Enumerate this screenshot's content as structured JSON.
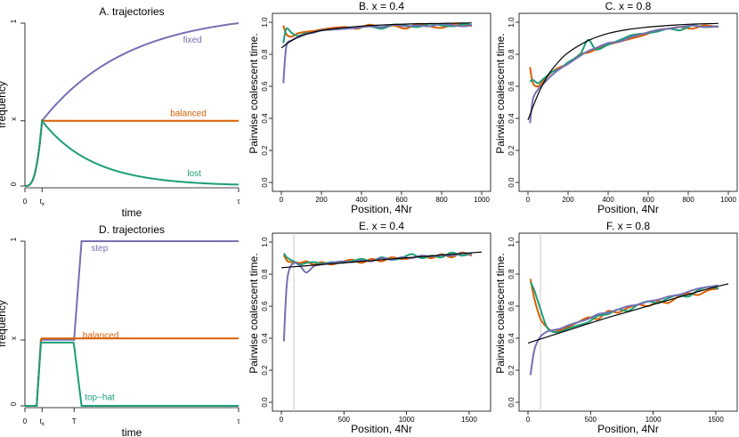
{
  "colors": {
    "purple": "#7570B3",
    "orange": "#D95F02",
    "green": "#1B9E77",
    "black": "#000000",
    "gray": "#C8C8C8"
  },
  "chart_data": [
    {
      "id": "A",
      "type": "line",
      "title": "A. trajectories",
      "xlabel": "time",
      "ylabel": "frequency",
      "xticks": [
        {
          "v": 0,
          "label": "0"
        },
        {
          "v": 0.08,
          "label": "t",
          "sub": "x"
        },
        {
          "v": 1,
          "label": "τ"
        }
      ],
      "yticks": [
        {
          "v": 0,
          "label": "0"
        },
        {
          "v": 0.4,
          "label": "x"
        },
        {
          "v": 1,
          "label": "1"
        }
      ],
      "xlim": [
        0,
        1
      ],
      "ylim": [
        0,
        1
      ],
      "series": [
        {
          "name": "fixed",
          "label": "fixed",
          "color": "purple",
          "label_at": [
            0.74,
            0.88
          ],
          "shape": "fixed"
        },
        {
          "name": "balanced",
          "label": "balanced",
          "color": "orange",
          "label_at": [
            0.68,
            0.43
          ],
          "shape": "balanced"
        },
        {
          "name": "lost",
          "label": "lost",
          "color": "green",
          "label_at": [
            0.76,
            0.06
          ],
          "shape": "lost"
        }
      ]
    },
    {
      "id": "B",
      "type": "line",
      "title": "B.  x =  0.4",
      "xlabel": "Position, 4Nr",
      "ylabel": "Pairwise coalescent time.",
      "xlim": [
        0,
        1000
      ],
      "ylim": [
        0,
        1
      ],
      "xticks": [
        0,
        200,
        400,
        600,
        800,
        1000
      ],
      "yticks": [
        0,
        0.2,
        0.4,
        0.6,
        0.8,
        1.0
      ],
      "ytick_labels": [
        "0.0",
        "0.2",
        "0.4",
        "0.6",
        "0.8",
        "1.0"
      ],
      "series": [
        {
          "name": "theory",
          "color": "black",
          "x": [
            0,
            50,
            100,
            150,
            200,
            300,
            400,
            500,
            600,
            700,
            800,
            900,
            950
          ],
          "y": [
            0.84,
            0.885,
            0.915,
            0.935,
            0.948,
            0.965,
            0.976,
            0.983,
            0.988,
            0.991,
            0.993,
            0.995,
            0.996
          ]
        },
        {
          "name": "sim-orange",
          "color": "orange",
          "x": [
            10,
            25,
            50,
            80,
            120,
            160,
            200,
            260,
            320,
            380,
            440,
            500,
            560,
            620,
            680,
            740,
            800,
            860,
            920,
            950
          ],
          "y": [
            0.98,
            0.925,
            0.91,
            0.93,
            0.94,
            0.945,
            0.955,
            0.965,
            0.97,
            0.96,
            0.985,
            0.965,
            0.98,
            0.96,
            0.99,
            0.975,
            0.965,
            0.99,
            0.985,
            0.975
          ]
        },
        {
          "name": "sim-green",
          "color": "green",
          "x": [
            10,
            25,
            50,
            80,
            120,
            160,
            200,
            260,
            320,
            380,
            440,
            500,
            560,
            620,
            680,
            740,
            800,
            860,
            920,
            950
          ],
          "y": [
            0.87,
            0.96,
            0.935,
            0.915,
            0.93,
            0.935,
            0.95,
            0.955,
            0.96,
            0.97,
            0.975,
            0.96,
            0.985,
            0.98,
            0.97,
            0.99,
            0.98,
            0.975,
            0.99,
            0.98
          ]
        },
        {
          "name": "sim-purple",
          "color": "purple",
          "x": [
            10,
            25,
            50,
            80,
            120,
            160,
            200,
            260,
            320,
            380,
            440,
            500,
            560,
            620,
            680,
            740,
            800,
            860,
            920,
            950
          ],
          "y": [
            0.62,
            0.85,
            0.885,
            0.905,
            0.925,
            0.935,
            0.95,
            0.955,
            0.96,
            0.965,
            0.975,
            0.97,
            0.985,
            0.975,
            0.98,
            0.975,
            0.99,
            0.98,
            0.975,
            0.985
          ]
        }
      ]
    },
    {
      "id": "C",
      "type": "line",
      "title": "C.  x =  0.8",
      "xlabel": "Position, 4Nr",
      "ylabel": "Pairwise coalescent time.",
      "xlim": [
        0,
        1000
      ],
      "ylim": [
        0,
        1
      ],
      "xticks": [
        0,
        200,
        400,
        600,
        800,
        1000
      ],
      "yticks": [
        0,
        0.2,
        0.4,
        0.6,
        0.8,
        1.0
      ],
      "ytick_labels": [
        "0.0",
        "0.2",
        "0.4",
        "0.6",
        "0.8",
        "1.0"
      ],
      "series": [
        {
          "name": "theory",
          "color": "black",
          "x": [
            0,
            50,
            100,
            150,
            200,
            300,
            400,
            500,
            600,
            700,
            800,
            900,
            950
          ],
          "y": [
            0.39,
            0.55,
            0.67,
            0.75,
            0.81,
            0.885,
            0.93,
            0.955,
            0.97,
            0.98,
            0.987,
            0.991,
            0.993
          ]
        },
        {
          "name": "sim-orange",
          "color": "orange",
          "x": [
            10,
            25,
            50,
            80,
            120,
            160,
            200,
            260,
            300,
            340,
            400,
            460,
            520,
            580,
            640,
            700,
            760,
            820,
            880,
            950
          ],
          "y": [
            0.72,
            0.62,
            0.6,
            0.64,
            0.69,
            0.72,
            0.74,
            0.8,
            0.81,
            0.83,
            0.86,
            0.88,
            0.9,
            0.92,
            0.95,
            0.96,
            0.97,
            0.96,
            0.98,
            0.97
          ]
        },
        {
          "name": "sim-green",
          "color": "green",
          "x": [
            10,
            25,
            50,
            80,
            120,
            160,
            200,
            260,
            300,
            340,
            400,
            460,
            520,
            580,
            640,
            700,
            760,
            820,
            880,
            950
          ],
          "y": [
            0.63,
            0.64,
            0.62,
            0.65,
            0.69,
            0.71,
            0.75,
            0.8,
            0.89,
            0.83,
            0.86,
            0.89,
            0.92,
            0.93,
            0.94,
            0.96,
            0.95,
            0.98,
            0.97,
            0.975
          ]
        },
        {
          "name": "sim-purple",
          "color": "purple",
          "x": [
            10,
            25,
            50,
            80,
            120,
            160,
            200,
            260,
            300,
            340,
            400,
            460,
            520,
            580,
            640,
            700,
            760,
            820,
            880,
            950
          ],
          "y": [
            0.37,
            0.52,
            0.58,
            0.62,
            0.67,
            0.71,
            0.74,
            0.79,
            0.82,
            0.84,
            0.87,
            0.88,
            0.91,
            0.93,
            0.95,
            0.96,
            0.97,
            0.98,
            0.97,
            0.975
          ]
        }
      ]
    },
    {
      "id": "D",
      "type": "line",
      "title": "D. trajectories",
      "xlabel": "time",
      "ylabel": "frequency",
      "xticks": [
        {
          "v": 0,
          "label": "0"
        },
        {
          "v": 0.08,
          "label": "t",
          "sub": "x"
        },
        {
          "v": 0.23,
          "label": "T"
        },
        {
          "v": 1,
          "label": "τ"
        }
      ],
      "yticks": [
        {
          "v": 0,
          "label": "0"
        },
        {
          "v": 0.4,
          "label": "x"
        },
        {
          "v": 1,
          "label": "1"
        }
      ],
      "xlim": [
        0,
        1
      ],
      "ylim": [
        0,
        1
      ],
      "series": [
        {
          "name": "step",
          "label": "step",
          "color": "purple",
          "label_at": [
            0.31,
            0.94
          ],
          "shape": "step"
        },
        {
          "name": "balanced",
          "label": "balanced",
          "color": "orange",
          "label_at": [
            0.27,
            0.41
          ],
          "shape": "balanced2"
        },
        {
          "name": "top-hat",
          "label": "top−hat",
          "color": "green",
          "label_at": [
            0.28,
            0.035
          ],
          "shape": "tophat"
        }
      ]
    },
    {
      "id": "E",
      "type": "line",
      "title": "E.  x =  0.4",
      "xlabel": "Position, 4Nr",
      "ylabel": "Pairwise coalescent time.",
      "xlim": [
        0,
        1600
      ],
      "ylim": [
        0,
        1
      ],
      "xticks": [
        0,
        500,
        1000,
        1500
      ],
      "yticks": [
        0,
        0.2,
        0.4,
        0.6,
        0.8,
        1.0
      ],
      "ytick_labels": [
        "0.0",
        "0.2",
        "0.4",
        "0.6",
        "0.8",
        "1.0"
      ],
      "vline": 100,
      "series": [
        {
          "name": "theory",
          "color": "black",
          "x": [
            0,
            200,
            400,
            600,
            800,
            1000,
            1200,
            1400,
            1600
          ],
          "y": [
            0.84,
            0.852,
            0.865,
            0.877,
            0.89,
            0.902,
            0.914,
            0.926,
            0.938
          ]
        },
        {
          "name": "sim-orange",
          "color": "orange",
          "x": [
            20,
            50,
            100,
            150,
            200,
            260,
            320,
            400,
            480,
            560,
            640,
            720,
            800,
            880,
            960,
            1040,
            1120,
            1200,
            1280,
            1360,
            1440,
            1520
          ],
          "y": [
            0.92,
            0.88,
            0.875,
            0.87,
            0.88,
            0.86,
            0.875,
            0.86,
            0.875,
            0.89,
            0.87,
            0.895,
            0.88,
            0.905,
            0.895,
            0.9,
            0.915,
            0.9,
            0.925,
            0.905,
            0.935,
            0.915
          ]
        },
        {
          "name": "sim-green",
          "color": "green",
          "x": [
            20,
            50,
            100,
            150,
            200,
            260,
            320,
            400,
            480,
            560,
            640,
            720,
            800,
            880,
            960,
            1040,
            1120,
            1200,
            1280,
            1360,
            1440,
            1520
          ],
          "y": [
            0.93,
            0.9,
            0.88,
            0.86,
            0.87,
            0.875,
            0.865,
            0.875,
            0.87,
            0.88,
            0.895,
            0.88,
            0.905,
            0.89,
            0.9,
            0.925,
            0.9,
            0.915,
            0.905,
            0.935,
            0.915,
            0.93
          ]
        },
        {
          "name": "sim-purple",
          "color": "purple",
          "x": [
            20,
            40,
            60,
            100,
            150,
            200,
            260,
            320,
            400,
            480,
            560,
            640,
            720,
            800,
            880,
            960,
            1040,
            1120,
            1200,
            1280,
            1360,
            1440,
            1520
          ],
          "y": [
            0.38,
            0.7,
            0.82,
            0.87,
            0.85,
            0.81,
            0.85,
            0.86,
            0.87,
            0.88,
            0.875,
            0.885,
            0.88,
            0.9,
            0.89,
            0.905,
            0.9,
            0.915,
            0.91,
            0.92,
            0.915,
            0.93,
            0.925
          ]
        }
      ]
    },
    {
      "id": "F",
      "type": "line",
      "title": "F.  x =  0.8",
      "xlabel": "Position, 4Nr",
      "ylabel": "Pairwise coalescent time.",
      "xlim": [
        0,
        1600
      ],
      "ylim": [
        0,
        1
      ],
      "xticks": [
        0,
        500,
        1000,
        1500
      ],
      "yticks": [
        0,
        0.2,
        0.4,
        0.6,
        0.8,
        1.0
      ],
      "ytick_labels": [
        "0.0",
        "0.2",
        "0.4",
        "0.6",
        "0.8",
        "1.0"
      ],
      "vline": 100,
      "series": [
        {
          "name": "theory",
          "color": "black",
          "x": [
            0,
            200,
            400,
            600,
            800,
            1000,
            1200,
            1400,
            1600
          ],
          "y": [
            0.37,
            0.42,
            0.47,
            0.52,
            0.565,
            0.61,
            0.655,
            0.7,
            0.74
          ]
        },
        {
          "name": "sim-orange",
          "color": "orange",
          "x": [
            20,
            50,
            100,
            150,
            200,
            260,
            320,
            400,
            480,
            560,
            640,
            720,
            800,
            880,
            960,
            1040,
            1120,
            1200,
            1280,
            1360,
            1440,
            1520
          ],
          "y": [
            0.77,
            0.65,
            0.52,
            0.47,
            0.44,
            0.45,
            0.47,
            0.5,
            0.53,
            0.52,
            0.57,
            0.56,
            0.59,
            0.61,
            0.6,
            0.63,
            0.62,
            0.66,
            0.68,
            0.67,
            0.7,
            0.71
          ]
        },
        {
          "name": "sim-green",
          "color": "green",
          "x": [
            20,
            50,
            100,
            150,
            200,
            260,
            320,
            400,
            480,
            560,
            640,
            720,
            800,
            880,
            960,
            1040,
            1120,
            1200,
            1280,
            1360,
            1440,
            1520
          ],
          "y": [
            0.75,
            0.7,
            0.58,
            0.47,
            0.44,
            0.44,
            0.46,
            0.48,
            0.5,
            0.54,
            0.55,
            0.58,
            0.57,
            0.61,
            0.63,
            0.62,
            0.65,
            0.67,
            0.66,
            0.7,
            0.72,
            0.71
          ]
        },
        {
          "name": "sim-purple",
          "color": "purple",
          "x": [
            20,
            40,
            60,
            100,
            150,
            200,
            260,
            320,
            400,
            480,
            560,
            640,
            720,
            800,
            880,
            960,
            1040,
            1120,
            1200,
            1280,
            1360,
            1440,
            1520
          ],
          "y": [
            0.17,
            0.28,
            0.35,
            0.41,
            0.44,
            0.45,
            0.46,
            0.48,
            0.5,
            0.52,
            0.55,
            0.56,
            0.58,
            0.6,
            0.61,
            0.63,
            0.64,
            0.66,
            0.67,
            0.69,
            0.71,
            0.72,
            0.73
          ]
        }
      ]
    }
  ]
}
